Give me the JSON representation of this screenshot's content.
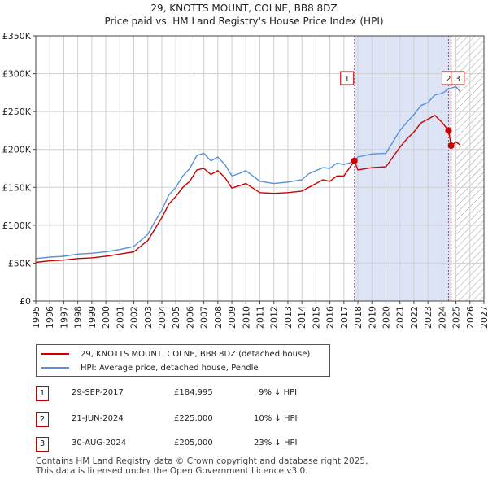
{
  "title_line1": "29, KNOTTS MOUNT, COLNE, BB8 8DZ",
  "title_line2": "Price paid vs. HM Land Registry's House Price Index (HPI)",
  "colors": {
    "property": "#cc0000",
    "hpi": "#5b8fd6",
    "shade": "#dde4f6",
    "marker": "#cc0000"
  },
  "chart_data": {
    "type": "line",
    "xlim": [
      1995,
      2027
    ],
    "ylim": [
      0,
      350000
    ],
    "x_ticks": [
      "1995",
      "1996",
      "1997",
      "1998",
      "1999",
      "2000",
      "2001",
      "2002",
      "2003",
      "2004",
      "2005",
      "2006",
      "2007",
      "2008",
      "2009",
      "2010",
      "2011",
      "2012",
      "2013",
      "2014",
      "2015",
      "2016",
      "2017",
      "2018",
      "2019",
      "2020",
      "2021",
      "2022",
      "2023",
      "2024",
      "2025",
      "2026",
      "2027"
    ],
    "y_ticks": [
      {
        "value": 0,
        "label": "£0"
      },
      {
        "value": 50000,
        "label": "£50K"
      },
      {
        "value": 100000,
        "label": "£100K"
      },
      {
        "value": 150000,
        "label": "£150K"
      },
      {
        "value": 200000,
        "label": "£200K"
      },
      {
        "value": 250000,
        "label": "£250K"
      },
      {
        "value": 300000,
        "label": "£300K"
      },
      {
        "value": 350000,
        "label": "£350K"
      }
    ],
    "shaded_region": [
      2017.75,
      2024.67
    ],
    "hatched_from": 2025.0,
    "series": [
      {
        "name": "HPI: Average price, detached house, Pendle",
        "x": [
          1995,
          1996,
          1997,
          1998,
          1999,
          2000,
          2001,
          2002,
          2003,
          2003.5,
          2004,
          2004.5,
          2005,
          2005.5,
          2006,
          2006.5,
          2007,
          2007.5,
          2008,
          2008.5,
          2009,
          2009.5,
          2010,
          2011,
          2012,
          2013,
          2014,
          2014.5,
          2015,
          2015.5,
          2016,
          2016.5,
          2017,
          2017.75,
          2018,
          2019,
          2020,
          2020.5,
          2021,
          2021.5,
          2022,
          2022.5,
          2023,
          2023.5,
          2024,
          2024.5,
          2025,
          2025.3
        ],
        "values": [
          56000,
          58000,
          59000,
          62000,
          63000,
          65000,
          68000,
          72000,
          88000,
          105000,
          120000,
          140000,
          150000,
          165000,
          175000,
          192000,
          195000,
          185000,
          190000,
          180000,
          165000,
          168000,
          172000,
          158000,
          155000,
          157000,
          160000,
          168000,
          172000,
          176000,
          175000,
          182000,
          180000,
          184000,
          190000,
          194000,
          195000,
          210000,
          225000,
          236000,
          246000,
          258000,
          262000,
          272000,
          274000,
          280000,
          283000,
          276000
        ]
      },
      {
        "name": "29, KNOTTS MOUNT, COLNE, BB8 8DZ (detached house)",
        "x": [
          1995,
          1996,
          1997,
          1998,
          1999,
          2000,
          2001,
          2002,
          2003,
          2003.5,
          2004,
          2004.5,
          2005,
          2005.5,
          2006,
          2006.5,
          2007,
          2007.5,
          2008,
          2008.5,
          2009,
          2009.5,
          2010,
          2011,
          2012,
          2013,
          2014,
          2014.5,
          2015,
          2015.5,
          2016,
          2016.5,
          2017,
          2017.75,
          2018,
          2019,
          2020,
          2020.5,
          2021,
          2021.5,
          2022,
          2022.5,
          2023,
          2023.5,
          2024,
          2024.47,
          2024.5,
          2024.66,
          2025,
          2025.3
        ],
        "values": [
          51000,
          53000,
          54000,
          56000,
          57000,
          59000,
          62000,
          65000,
          80000,
          95000,
          110000,
          128000,
          138000,
          150000,
          158000,
          173000,
          175000,
          167000,
          172000,
          163000,
          149000,
          152000,
          155000,
          143000,
          142000,
          143000,
          145000,
          150000,
          155000,
          160000,
          158000,
          165000,
          165000,
          184995,
          173000,
          176000,
          177000,
          190000,
          203000,
          214000,
          223000,
          235000,
          240000,
          245000,
          236000,
          225000,
          222000,
          205000,
          210000,
          206000
        ]
      }
    ],
    "markers": [
      {
        "label": "1",
        "x": 2017.75,
        "y": 184995
      },
      {
        "label": "2",
        "x": 2024.47,
        "y": 225000
      },
      {
        "label": "3",
        "x": 2024.66,
        "y": 205000
      }
    ]
  },
  "legend": {
    "property": "29, KNOTTS MOUNT, COLNE, BB8 8DZ (detached house)",
    "hpi": "HPI: Average price, detached house, Pendle"
  },
  "transactions": [
    {
      "num": "1",
      "date": "29-SEP-2017",
      "price": "£184,995",
      "hpi": "9% ↓ HPI"
    },
    {
      "num": "2",
      "date": "21-JUN-2024",
      "price": "£225,000",
      "hpi": "10% ↓ HPI"
    },
    {
      "num": "3",
      "date": "30-AUG-2024",
      "price": "£205,000",
      "hpi": "23% ↓ HPI"
    }
  ],
  "footer": {
    "line1": "Contains HM Land Registry data © Crown copyright and database right 2025.",
    "line2": "This data is licensed under the Open Government Licence v3.0."
  }
}
